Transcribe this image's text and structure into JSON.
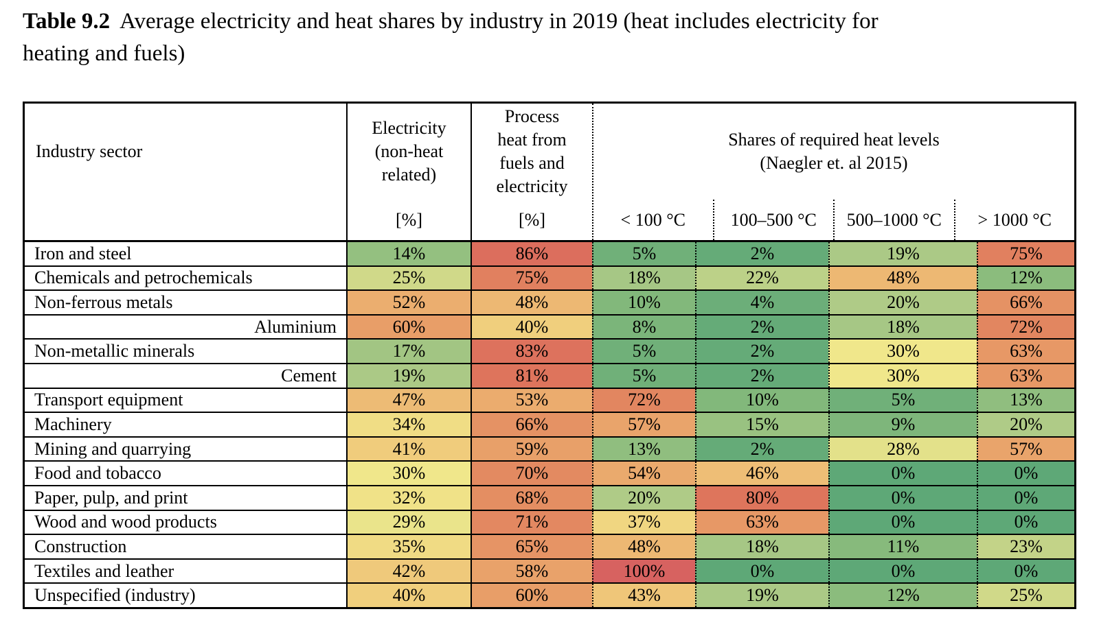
{
  "title": {
    "label": "Table 9.2",
    "text": "Average electricity and heat shares by industry in 2019 (heat includes electricity for\nheating and fuels)"
  },
  "table": {
    "columns": {
      "industry": "Industry sector",
      "electricity": "Electricity\n(non-heat\nrelated)",
      "process_heat": "Process\nheat from\nfuels and\nelectricity",
      "unit": "[%]",
      "heat_levels_group": "Shares of required heat levels\n(Naegler et. al 2015)",
      "heat_levels": [
        "< 100 °C",
        "100–500 °C",
        "500–1000 °C",
        "> 1000 °C"
      ]
    },
    "rows": [
      {
        "sector": "Iron and steel",
        "indent": false,
        "values": [
          "14%",
          "86%",
          "5%",
          "2%",
          "19%",
          "75%"
        ]
      },
      {
        "sector": "Chemicals and petrochemicals",
        "indent": false,
        "values": [
          "25%",
          "75%",
          "18%",
          "22%",
          "48%",
          "12%"
        ]
      },
      {
        "sector": "Non-ferrous metals",
        "indent": false,
        "values": [
          "52%",
          "48%",
          "10%",
          "4%",
          "20%",
          "66%"
        ]
      },
      {
        "sector": "Aluminium",
        "indent": true,
        "values": [
          "60%",
          "40%",
          "8%",
          "2%",
          "18%",
          "72%"
        ]
      },
      {
        "sector": "Non-metallic minerals",
        "indent": false,
        "values": [
          "17%",
          "83%",
          "5%",
          "2%",
          "30%",
          "63%"
        ]
      },
      {
        "sector": "Cement",
        "indent": true,
        "values": [
          "19%",
          "81%",
          "5%",
          "2%",
          "30%",
          "63%"
        ]
      },
      {
        "sector": "Transport equipment",
        "indent": false,
        "values": [
          "47%",
          "53%",
          "72%",
          "10%",
          "5%",
          "13%"
        ]
      },
      {
        "sector": "Machinery",
        "indent": false,
        "values": [
          "34%",
          "66%",
          "57%",
          "15%",
          "9%",
          "20%"
        ]
      },
      {
        "sector": "Mining and quarrying",
        "indent": false,
        "values": [
          "41%",
          "59%",
          "13%",
          "2%",
          "28%",
          "57%"
        ]
      },
      {
        "sector": "Food and tobacco",
        "indent": false,
        "values": [
          "30%",
          "70%",
          "54%",
          "46%",
          "0%",
          "0%"
        ]
      },
      {
        "sector": "Paper, pulp, and print",
        "indent": false,
        "values": [
          "32%",
          "68%",
          "20%",
          "80%",
          "0%",
          "0%"
        ]
      },
      {
        "sector": "Wood and wood products",
        "indent": false,
        "values": [
          "29%",
          "71%",
          "37%",
          "63%",
          "0%",
          "0%"
        ]
      },
      {
        "sector": "Construction",
        "indent": false,
        "values": [
          "35%",
          "65%",
          "48%",
          "18%",
          "11%",
          "23%"
        ]
      },
      {
        "sector": "Textiles and leather",
        "indent": false,
        "values": [
          "42%",
          "58%",
          "100%",
          "0%",
          "0%",
          "0%"
        ]
      },
      {
        "sector": "Unspecified (industry)",
        "indent": false,
        "values": [
          "40%",
          "60%",
          "43%",
          "19%",
          "12%",
          "25%"
        ]
      }
    ]
  },
  "colors": {
    "border": "#000000",
    "scale_stops": [
      [
        0,
        "#5EA877"
      ],
      [
        10,
        "#82B87B"
      ],
      [
        20,
        "#AFCB87"
      ],
      [
        30,
        "#F0E78B"
      ],
      [
        40,
        "#F0CF7D"
      ],
      [
        50,
        "#ECB271"
      ],
      [
        60,
        "#E89E68"
      ],
      [
        70,
        "#E38A61"
      ],
      [
        80,
        "#DE755C"
      ],
      [
        90,
        "#DA6A5E"
      ],
      [
        100,
        "#D76260"
      ]
    ]
  }
}
